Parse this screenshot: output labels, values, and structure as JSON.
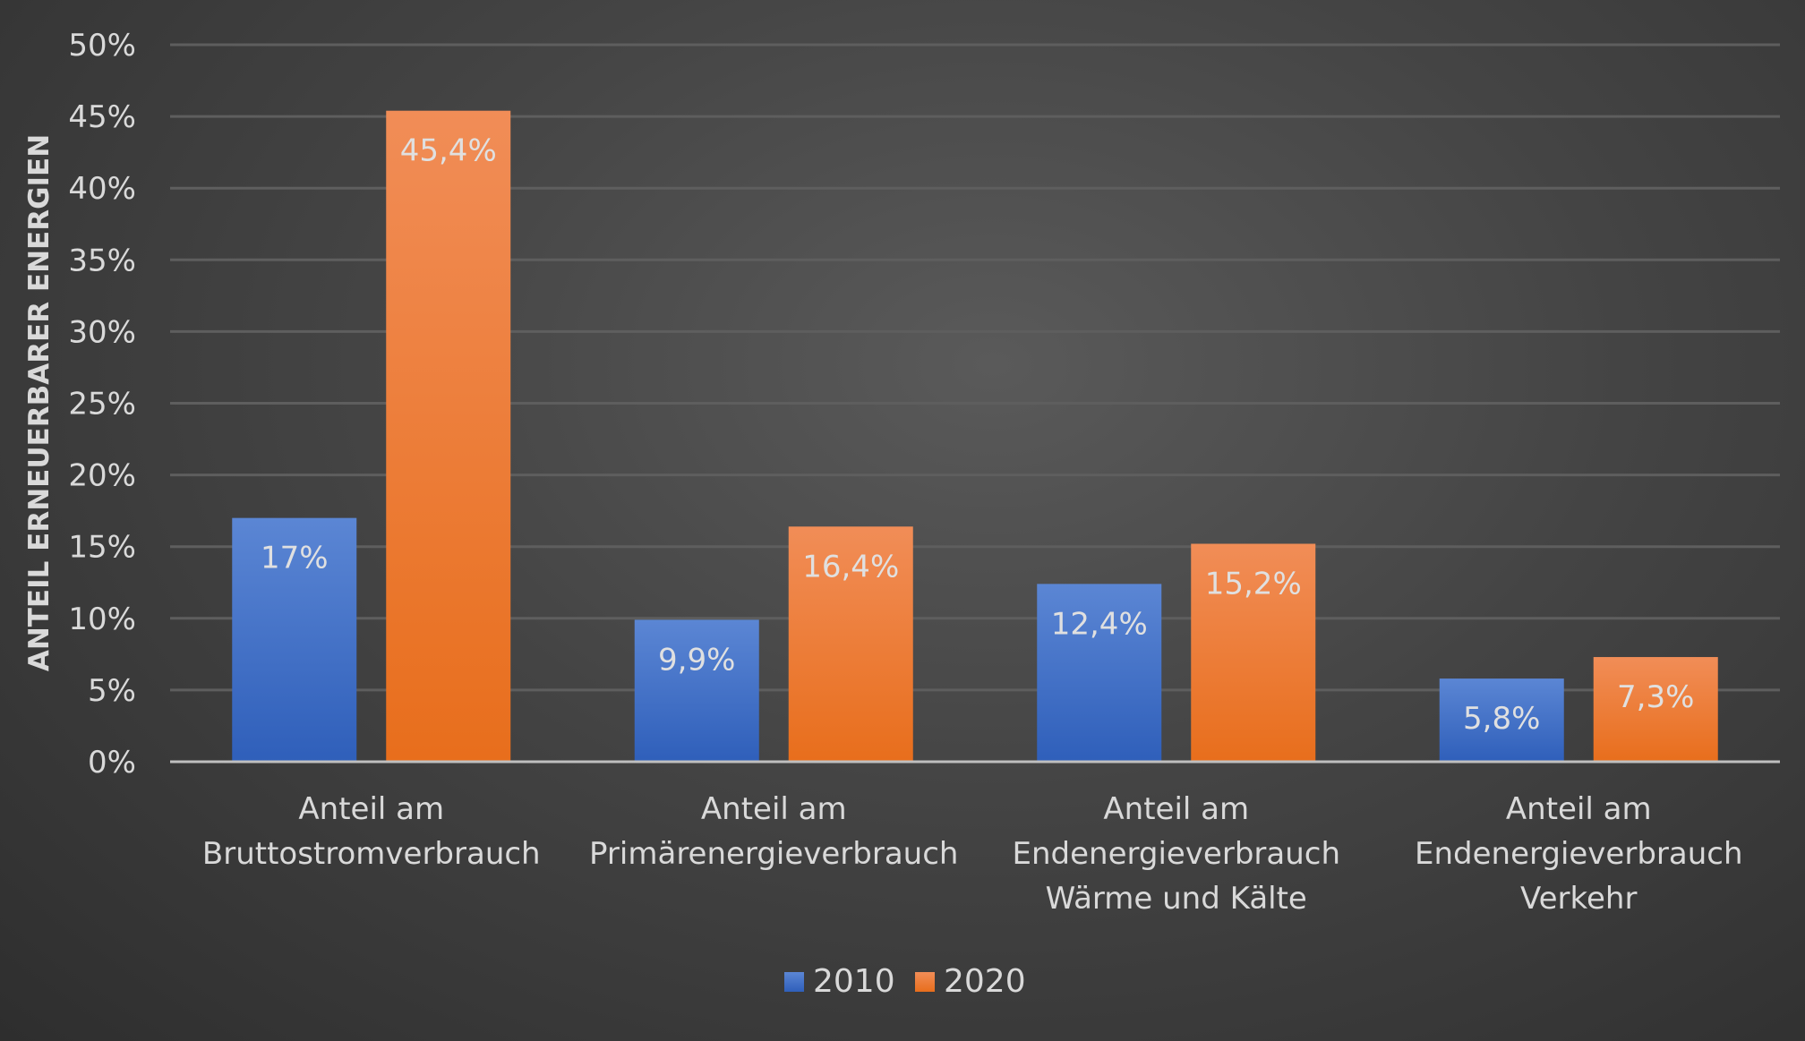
{
  "chart_data": {
    "type": "bar",
    "title": "",
    "xlabel": "",
    "ylabel": "ANTEIL ERNEUERBARER ENERGIEN",
    "ylim": [
      0,
      50
    ],
    "yticks": [
      "0%",
      "5%",
      "10%",
      "15%",
      "20%",
      "25%",
      "30%",
      "35%",
      "40%",
      "45%",
      "50%"
    ],
    "grid": true,
    "legend_position": "bottom",
    "categories": [
      [
        "Anteil am",
        "Bruttostromverbrauch"
      ],
      [
        "Anteil am",
        "Primärenergieverbrauch"
      ],
      [
        "Anteil am",
        "Endenergieverbrauch",
        "Wärme und Kälte"
      ],
      [
        "Anteil am",
        "Endenergieverbrauch",
        "Verkehr"
      ]
    ],
    "series": [
      {
        "name": "2010",
        "color": "#4472c4",
        "values": [
          17,
          9.9,
          12.4,
          5.8
        ],
        "labels": [
          "17%",
          "9,9%",
          "12,4%",
          "5,8%"
        ]
      },
      {
        "name": "2020",
        "color": "#ed7d31",
        "values": [
          45.4,
          16.4,
          15.2,
          7.3
        ],
        "labels": [
          "45,4%",
          "16,4%",
          "15,2%",
          "7,3%"
        ]
      }
    ]
  }
}
